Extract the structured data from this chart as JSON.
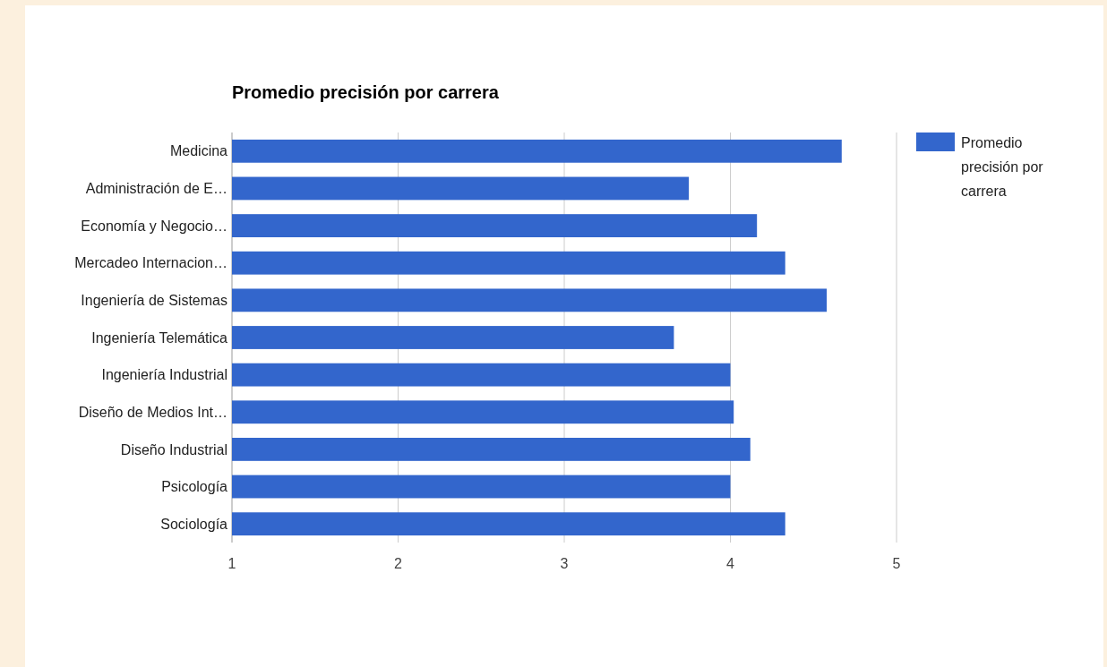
{
  "chart_data": {
    "type": "bar",
    "orientation": "horizontal",
    "title": "Promedio precisión por carrera",
    "categories": [
      "Medicina",
      "Administración de E…",
      "Economía y Negocio…",
      "Mercadeo Internacion…",
      "Ingeniería de Sistemas",
      "Ingeniería Telemática",
      "Ingeniería Industrial",
      "Diseño de Medios Int…",
      "Diseño Industrial",
      "Psicología",
      "Sociología"
    ],
    "series": [
      {
        "name": "Promedio precisión por carrera",
        "color": "#3366cc",
        "values": [
          4.67,
          3.75,
          4.16,
          4.33,
          4.58,
          3.66,
          4.0,
          4.02,
          4.12,
          4.0,
          4.33
        ]
      }
    ],
    "xlim": [
      1,
      5
    ],
    "xticks": [
      1,
      2,
      3,
      4,
      5
    ],
    "grid": "x",
    "legend": "right"
  }
}
